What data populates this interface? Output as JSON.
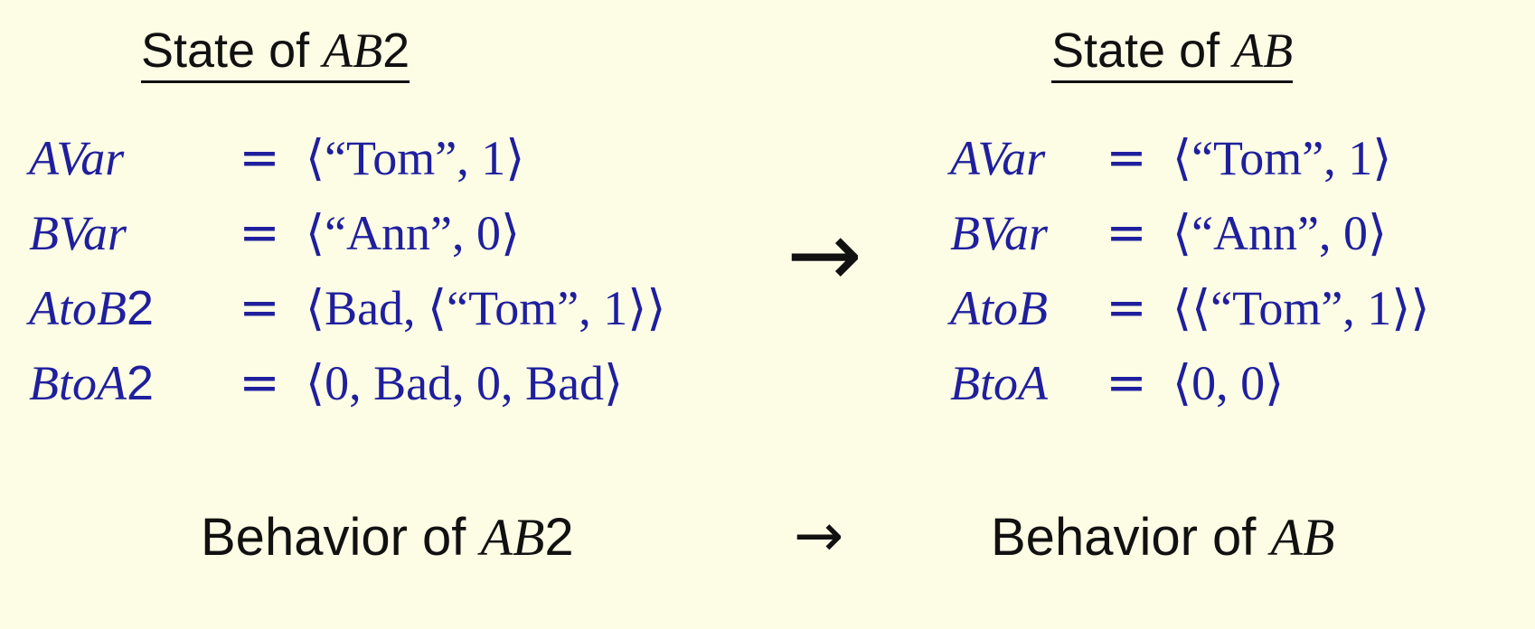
{
  "left_heading": {
    "prefix": "State of ",
    "name": "AB",
    "suffix": "2"
  },
  "right_heading": {
    "prefix": "State of ",
    "name": "AB"
  },
  "left_equations": [
    {
      "var": "AVar",
      "var_suffix": "",
      "eq": "=",
      "value": "⟨“Tom”, 1⟩"
    },
    {
      "var": "BVar",
      "var_suffix": "",
      "eq": "=",
      "value": "⟨“Ann”, 0⟩"
    },
    {
      "var": "AtoB",
      "var_suffix": "2",
      "eq": "=",
      "value": "⟨Bad, ⟨“Tom”, 1⟩⟩"
    },
    {
      "var": "BtoA",
      "var_suffix": "2",
      "eq": "=",
      "value": "⟨0, Bad, 0, Bad⟩"
    }
  ],
  "right_equations": [
    {
      "var": "AVar",
      "eq": "=",
      "value": "⟨“Tom”, 1⟩"
    },
    {
      "var": "BVar",
      "eq": "=",
      "value": "⟨“Ann”, 0⟩"
    },
    {
      "var": "AtoB",
      "eq": "=",
      "value": "⟨⟨“Tom”, 1⟩⟩"
    },
    {
      "var": "BtoA",
      "eq": "=",
      "value": "⟨0, 0⟩"
    }
  ],
  "arrow_symbol": "→",
  "left_behavior": {
    "prefix": "Behavior of ",
    "name": "AB",
    "suffix": "2"
  },
  "right_behavior": {
    "prefix": "Behavior of ",
    "name": "AB"
  },
  "colors": {
    "background": "#fdfde6",
    "math": "#1f1f9e",
    "text": "#111111"
  }
}
